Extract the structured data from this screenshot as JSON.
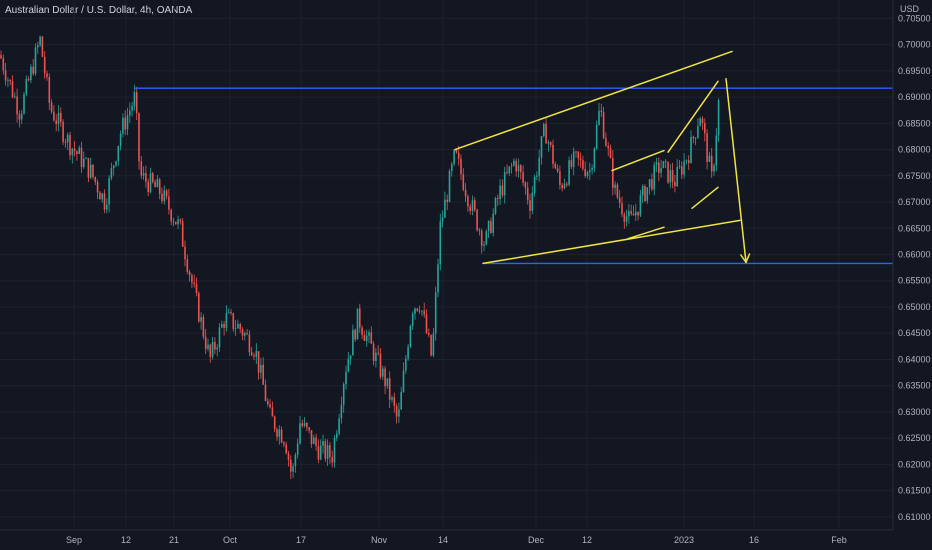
{
  "title": "Australian Dollar / U.S. Dollar, 4h, OANDA",
  "chart_data": {
    "type": "candlestick",
    "symbol": "Australian Dollar / U.S. Dollar",
    "interval": "4h",
    "broker": "OANDA",
    "currency": "USD",
    "ylim": [
      0.6075,
      0.7085
    ],
    "y_ticks": [
      "0.70500",
      "0.70000",
      "0.69500",
      "0.69000",
      "0.68500",
      "0.68000",
      "0.67500",
      "0.67000",
      "0.66500",
      "0.66000",
      "0.65500",
      "0.65000",
      "0.64500",
      "0.64000",
      "0.63500",
      "0.63000",
      "0.62500",
      "0.62000",
      "0.61500",
      "0.61000"
    ],
    "x_ticks": [
      "Sep",
      "12",
      "21",
      "Oct",
      "17",
      "Nov",
      "14",
      "Dec",
      "12",
      "2023",
      "16",
      "Feb"
    ],
    "colors": {
      "up": "#26a69a",
      "down": "#ef5350",
      "level": "#2962ff",
      "drawing": "#f0e442",
      "background": "#131722"
    },
    "price_path": [
      [
        0,
        0.698
      ],
      [
        20,
        0.687
      ],
      [
        40,
        0.701
      ],
      [
        50,
        0.688
      ],
      [
        70,
        0.681
      ],
      [
        90,
        0.676
      ],
      [
        105,
        0.67
      ],
      [
        120,
        0.683
      ],
      [
        135,
        0.69
      ],
      [
        140,
        0.675
      ],
      [
        160,
        0.672
      ],
      [
        180,
        0.665
      ],
      [
        195,
        0.652
      ],
      [
        210,
        0.64
      ],
      [
        225,
        0.648
      ],
      [
        240,
        0.646
      ],
      [
        255,
        0.642
      ],
      [
        270,
        0.629
      ],
      [
        285,
        0.625
      ],
      [
        292,
        0.6175
      ],
      [
        300,
        0.628
      ],
      [
        318,
        0.623
      ],
      [
        332,
        0.6215
      ],
      [
        345,
        0.638
      ],
      [
        358,
        0.648
      ],
      [
        372,
        0.642
      ],
      [
        385,
        0.636
      ],
      [
        398,
        0.628
      ],
      [
        412,
        0.65
      ],
      [
        420,
        0.651
      ],
      [
        432,
        0.64
      ],
      [
        440,
        0.665
      ],
      [
        455,
        0.679
      ],
      [
        470,
        0.67
      ],
      [
        485,
        0.662
      ],
      [
        500,
        0.672
      ],
      [
        515,
        0.678
      ],
      [
        530,
        0.67
      ],
      [
        545,
        0.684
      ],
      [
        560,
        0.673
      ],
      [
        575,
        0.678
      ],
      [
        590,
        0.676
      ],
      [
        600,
        0.688
      ],
      [
        615,
        0.672
      ],
      [
        630,
        0.666
      ],
      [
        645,
        0.672
      ],
      [
        660,
        0.677
      ],
      [
        675,
        0.674
      ],
      [
        690,
        0.68
      ],
      [
        700,
        0.687
      ],
      [
        712,
        0.674
      ],
      [
        720,
        0.692
      ]
    ],
    "levels": [
      {
        "price": 0.6917,
        "x_start": 135
      },
      {
        "price": 0.6583,
        "x_start": 483
      }
    ],
    "drawings": [
      {
        "type": "trendline",
        "from": [
          455,
          0.68
        ],
        "to": [
          732,
          0.6987
        ]
      },
      {
        "type": "trendline",
        "from": [
          483,
          0.6583
        ],
        "to": [
          740,
          0.6665
        ]
      },
      {
        "type": "trendline",
        "from": [
          612,
          0.676
        ],
        "to": [
          664,
          0.6798
        ]
      },
      {
        "type": "trendline",
        "from": [
          628,
          0.663
        ],
        "to": [
          664,
          0.6652
        ]
      },
      {
        "type": "trendline",
        "from": [
          668,
          0.6795
        ],
        "to": [
          718,
          0.693
        ]
      },
      {
        "type": "trendline",
        "from": [
          692,
          0.6688
        ],
        "to": [
          718,
          0.6728
        ]
      },
      {
        "type": "arrow",
        "from": [
          726,
          0.6935
        ],
        "to": [
          746,
          0.6585
        ]
      }
    ]
  }
}
